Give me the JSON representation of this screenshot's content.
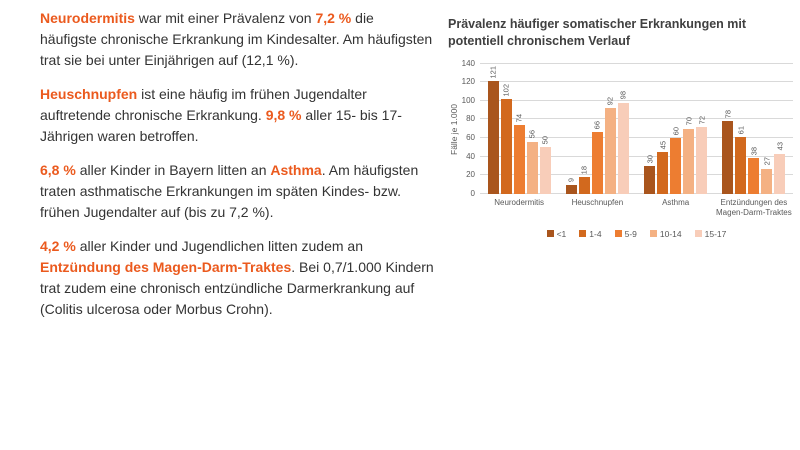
{
  "page": {
    "background": "#FFFFFF",
    "text_color": "#333333",
    "highlight_color": "#EB5A1E"
  },
  "left_text": {
    "paragraphs": [
      {
        "segments": [
          {
            "text": "Neurodermitis",
            "highlight": true
          },
          {
            "text": " war mit einer Prävalenz von ",
            "highlight": false
          },
          {
            "text": "7,2 %",
            "highlight": true
          },
          {
            "text": " die häufigste chronische Erkrankung im Kindesalter. Am häufigsten trat sie bei unter Einjährigen auf (12,1 %).",
            "highlight": false
          }
        ]
      },
      {
        "segments": [
          {
            "text": "Heuschnupfen",
            "highlight": true
          },
          {
            "text": " ist eine häufig im frühen Jugendalter auftretende chronische Erkrankung. ",
            "highlight": false
          },
          {
            "text": "9,8 %",
            "highlight": true
          },
          {
            "text": " aller 15- bis 17-Jährigen waren betroffen.",
            "highlight": false
          }
        ]
      },
      {
        "segments": [
          {
            "text": "6,8 %",
            "highlight": true
          },
          {
            "text": " aller Kinder in Bayern litten an ",
            "highlight": false
          },
          {
            "text": "Asthma",
            "highlight": true
          },
          {
            "text": ". Am häufigsten traten asthmatische Erkrankungen im späten Kindes- bzw. frühen Jugendalter auf (bis zu 7,2 %).",
            "highlight": false
          }
        ]
      },
      {
        "segments": [
          {
            "text": "4,2 %",
            "highlight": true
          },
          {
            "text": " aller Kinder und Jugendlichen litten zudem an ",
            "highlight": false
          },
          {
            "text": "Entzündung des Magen-Darm-Traktes",
            "highlight": true
          },
          {
            "text": ". Bei 0,7/1.000 Kindern trat zudem eine chronisch entzündliche Darmerkrankung auf (Colitis ulcerosa oder Morbus Crohn).",
            "highlight": false
          }
        ]
      }
    ]
  },
  "chart_data": {
    "type": "bar",
    "title": "Prävalenz häufiger somatischer Erkrankungen mit potentiell chronischem Verlauf",
    "categories": [
      "Neurodermitis",
      "Heuschnupfen",
      "Asthma",
      "Entzündungen des Magen-Darm-Traktes"
    ],
    "series": [
      {
        "name": "<1",
        "color": "#A9551D",
        "values": [
          121,
          9,
          30,
          78
        ]
      },
      {
        "name": "1-4",
        "color": "#D2691E",
        "values": [
          102,
          18,
          45,
          61
        ]
      },
      {
        "name": "5-9",
        "color": "#ED7D31",
        "values": [
          74,
          66,
          60,
          38
        ]
      },
      {
        "name": "10-14",
        "color": "#F4B183",
        "values": [
          56,
          92,
          70,
          27
        ]
      },
      {
        "name": "15-17",
        "color": "#F8CDB9",
        "values": [
          50,
          98,
          72,
          43
        ]
      }
    ],
    "xlabel": "",
    "ylabel": "Fälle je 1.000",
    "ylim": [
      0,
      140
    ],
    "ytick_step": 20,
    "grid": true,
    "legend_position": "bottom",
    "data_labels": true,
    "data_label_rotation": -90,
    "colors": {
      "grid": "#D9D9D9",
      "axis_text": "#595959",
      "title_text": "#404040"
    }
  }
}
